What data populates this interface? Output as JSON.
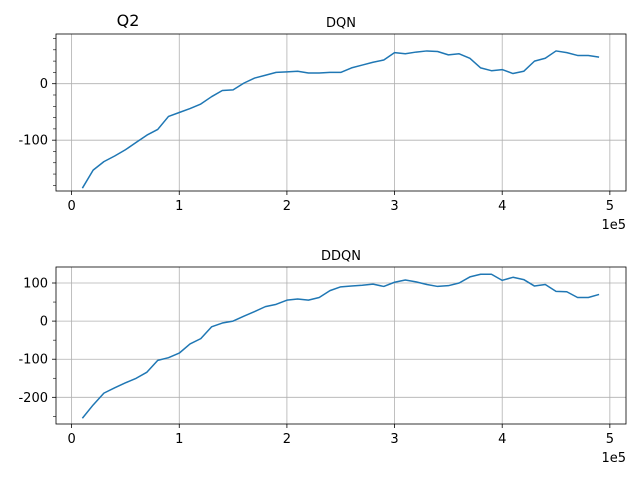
{
  "figure": {
    "suptitle": "Q2"
  },
  "chart_data": [
    {
      "type": "line",
      "title": "DQN",
      "x_exponent_label": "1e5",
      "xlim": [
        -14500,
        515000
      ],
      "ylim": [
        -190,
        88
      ],
      "x_ticks": [
        0,
        100000,
        200000,
        300000,
        400000,
        500000
      ],
      "x_tick_labels": [
        "0",
        "1",
        "2",
        "3",
        "4",
        "5"
      ],
      "y_ticks": [
        -100,
        0
      ],
      "y_tick_labels": [
        "-100",
        "0"
      ],
      "y_minor_step": 20,
      "grid": true,
      "color": "#1f77b4",
      "series": [
        {
          "x": [
            10000,
            20000,
            30000,
            40000,
            50000,
            60000,
            70000,
            80000,
            90000,
            100000,
            110000,
            120000,
            130000,
            140000,
            150000,
            160000,
            170000,
            180000,
            190000,
            200000,
            210000,
            220000,
            230000,
            240000,
            250000,
            260000,
            270000,
            280000,
            290000,
            300000,
            310000,
            320000,
            330000,
            340000,
            350000,
            360000,
            370000,
            380000,
            390000,
            400000,
            410000,
            420000,
            430000,
            440000,
            450000,
            460000,
            470000,
            480000,
            490000
          ],
          "y": [
            -185,
            -153,
            -138,
            -128,
            -117,
            -104,
            -91,
            -81,
            -58,
            -51,
            -44,
            -36,
            -23,
            -12,
            -11,
            1,
            10,
            15,
            20,
            21,
            22,
            19,
            19,
            20,
            20,
            28,
            33,
            38,
            42,
            55,
            53,
            56,
            58,
            57,
            51,
            53,
            45,
            28,
            23,
            25,
            18,
            22,
            40,
            45,
            58,
            55,
            50,
            50,
            47
          ]
        }
      ]
    },
    {
      "type": "line",
      "title": "DDQN",
      "x_exponent_label": "1e5",
      "xlim": [
        -14500,
        515000
      ],
      "ylim": [
        -270,
        142
      ],
      "x_ticks": [
        0,
        100000,
        200000,
        300000,
        400000,
        500000
      ],
      "x_tick_labels": [
        "0",
        "1",
        "2",
        "3",
        "4",
        "5"
      ],
      "y_ticks": [
        -200,
        -100,
        0,
        100
      ],
      "y_tick_labels": [
        "-200",
        "-100",
        "0",
        "100"
      ],
      "y_minor_step": 50,
      "grid": true,
      "color": "#1f77b4",
      "series": [
        {
          "x": [
            10000,
            20000,
            30000,
            40000,
            50000,
            60000,
            70000,
            80000,
            90000,
            100000,
            110000,
            120000,
            130000,
            140000,
            150000,
            160000,
            170000,
            180000,
            190000,
            200000,
            210000,
            220000,
            230000,
            240000,
            250000,
            260000,
            270000,
            280000,
            290000,
            300000,
            310000,
            320000,
            330000,
            340000,
            350000,
            360000,
            370000,
            380000,
            390000,
            400000,
            410000,
            420000,
            430000,
            440000,
            450000,
            460000,
            470000,
            480000,
            490000
          ],
          "y": [
            -255,
            -220,
            -189,
            -175,
            -162,
            -150,
            -134,
            -103,
            -96,
            -84,
            -60,
            -46,
            -15,
            -5,
            0,
            13,
            25,
            38,
            44,
            55,
            58,
            55,
            62,
            80,
            90,
            92,
            94,
            97,
            91,
            102,
            108,
            103,
            96,
            91,
            93,
            100,
            116,
            123,
            123,
            107,
            115,
            109,
            92,
            96,
            78,
            77,
            62,
            62,
            70
          ]
        }
      ]
    }
  ]
}
